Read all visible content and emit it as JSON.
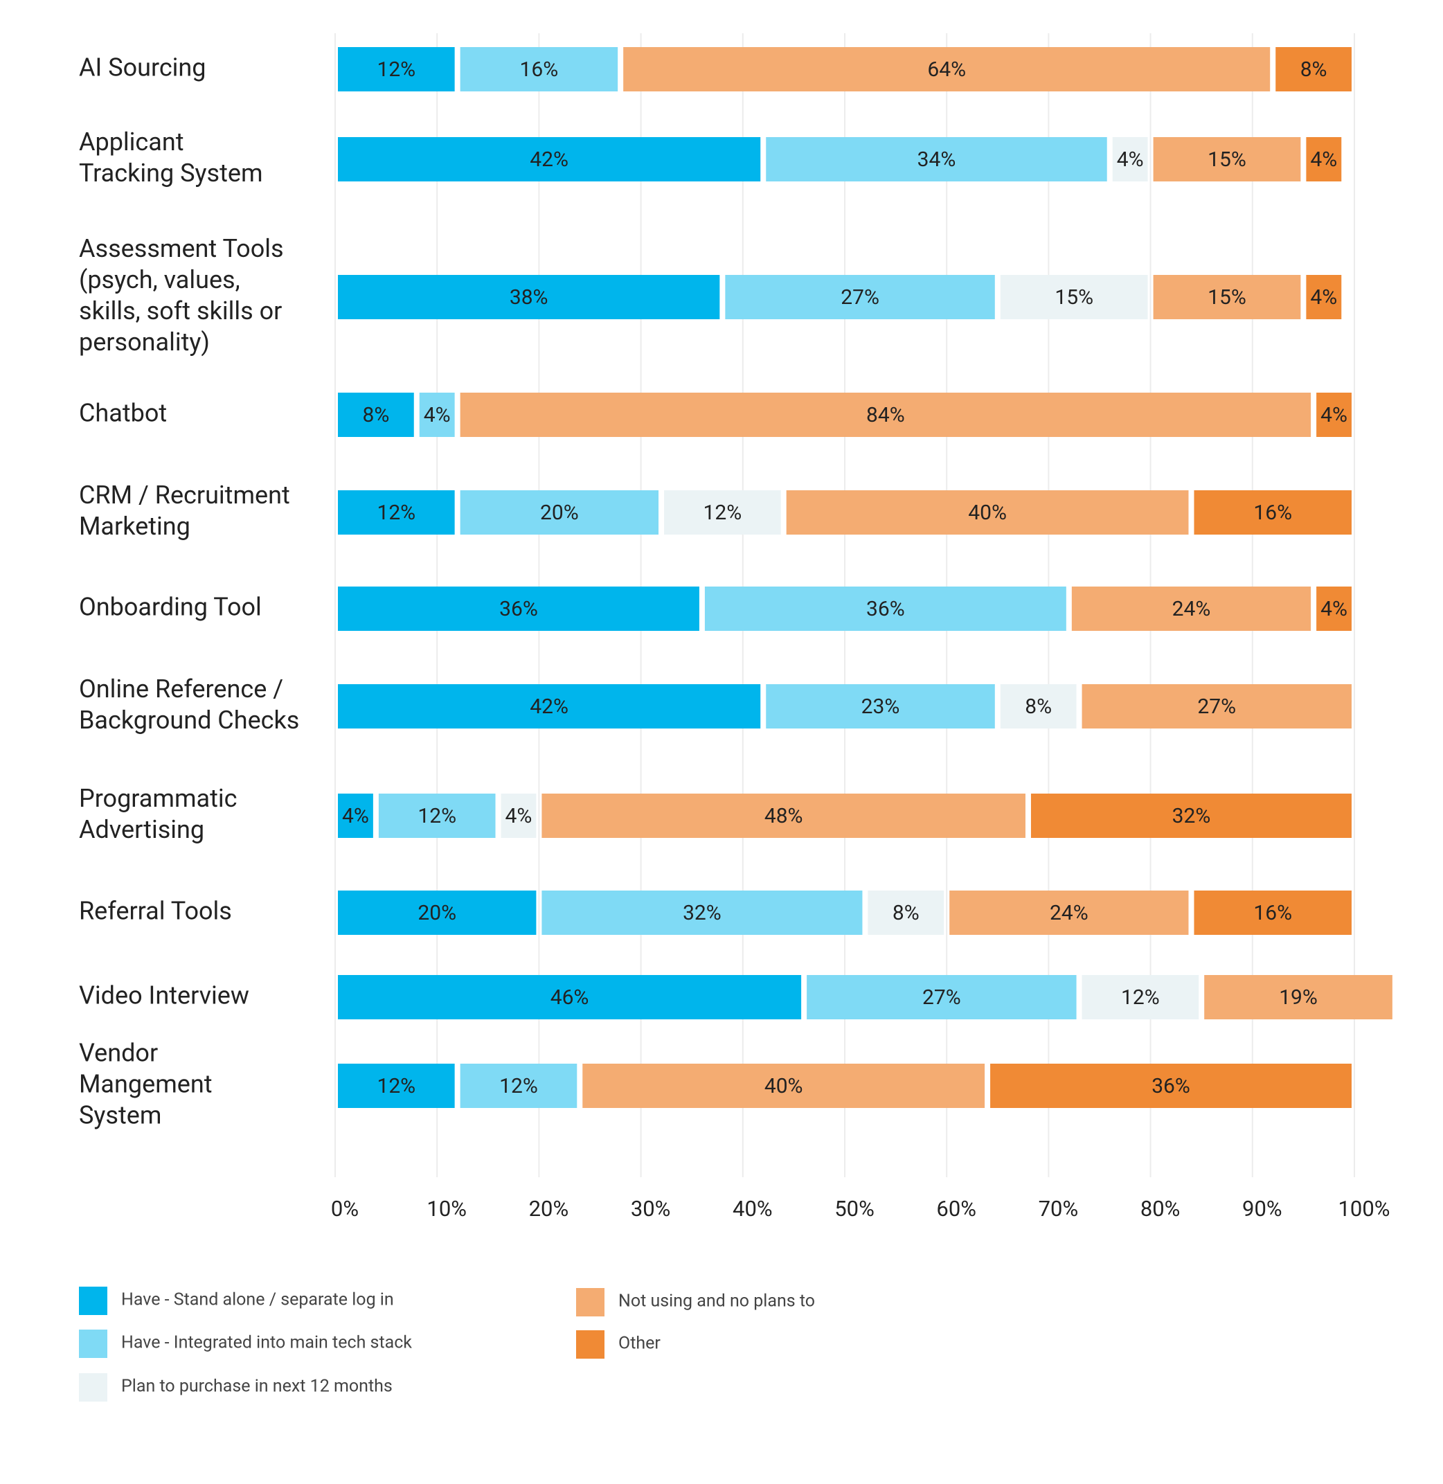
{
  "chart_data": {
    "type": "stacked-barh",
    "categories": [
      [
        "AI Sourcing"
      ],
      [
        "Applicant",
        "Tracking System"
      ],
      [
        "Assessment Tools",
        "(psych, values,",
        "skills, soft skills or",
        "personality)"
      ],
      [
        "Chatbot"
      ],
      [
        "CRM / Recruitment",
        "Marketing"
      ],
      [
        "Onboarding Tool"
      ],
      [
        "Online Reference /",
        "Background Checks"
      ],
      [
        "Programmatic",
        "Advertising"
      ],
      [
        "Referral Tools"
      ],
      [
        "Video Interview"
      ],
      [
        "Vendor",
        "Mangement",
        "System"
      ]
    ],
    "series": [
      {
        "name": "Have - Stand alone / separate log in",
        "color": "#00b5ec",
        "values": [
          12,
          42,
          38,
          8,
          12,
          36,
          42,
          4,
          20,
          46,
          12
        ],
        "value_labels": [
          "12%",
          "42%",
          "38%",
          "8%",
          "12%",
          "36%",
          "42%",
          "4%",
          "20%",
          "46%",
          "12%"
        ]
      },
      {
        "name": "Have - Integrated into main tech stack",
        "color": "#7fdaf5",
        "values": [
          16,
          34,
          27,
          4,
          20,
          36,
          23,
          12,
          32,
          27,
          12
        ],
        "value_labels": [
          "16%",
          "34%",
          "27%",
          "4%",
          "20%",
          "36%",
          "23%",
          "12%",
          "32%",
          "27%",
          "12%"
        ]
      },
      {
        "name": "Plan to purchase in next 12 months",
        "color": "#ebf3f5",
        "values": [
          null,
          4,
          15,
          null,
          12,
          null,
          8,
          4,
          8,
          12,
          null
        ],
        "value_labels": [
          null,
          "4%",
          "15%",
          null,
          "12%",
          null,
          "8%",
          "4%",
          "8%",
          "12%",
          null
        ]
      },
      {
        "name": "Not using and no plans to",
        "color": "#f4ac72",
        "values": [
          64,
          15,
          15,
          84,
          40,
          24,
          27,
          48,
          24,
          19,
          40
        ],
        "value_labels": [
          "64%",
          "15%",
          "15%",
          "84%",
          "40%",
          "24%",
          "27%",
          "48%",
          "24%",
          "19%",
          "40%"
        ]
      },
      {
        "name": "Other",
        "color": "#f08a35",
        "values": [
          8,
          4,
          4,
          4,
          16,
          4,
          null,
          32,
          16,
          null,
          36
        ],
        "value_labels": [
          "8%",
          "4%",
          "4%",
          "4%",
          "16%",
          "4%",
          null,
          "32%",
          "16%",
          null,
          "36%"
        ]
      }
    ],
    "xlim": [
      0,
      100
    ],
    "xticks": [
      {
        "value": 0,
        "label": "0%"
      },
      {
        "value": 10,
        "label": "10%"
      },
      {
        "value": 20,
        "label": "20%"
      },
      {
        "value": 30,
        "label": "30%"
      },
      {
        "value": 40,
        "label": "40%"
      },
      {
        "value": 50,
        "label": "50%"
      },
      {
        "value": 60,
        "label": "60%"
      },
      {
        "value": 70,
        "label": "70%"
      },
      {
        "value": 80,
        "label": "80%"
      },
      {
        "value": 90,
        "label": "90%"
      },
      {
        "value": 100,
        "label": "100%"
      }
    ],
    "grid": true
  }
}
